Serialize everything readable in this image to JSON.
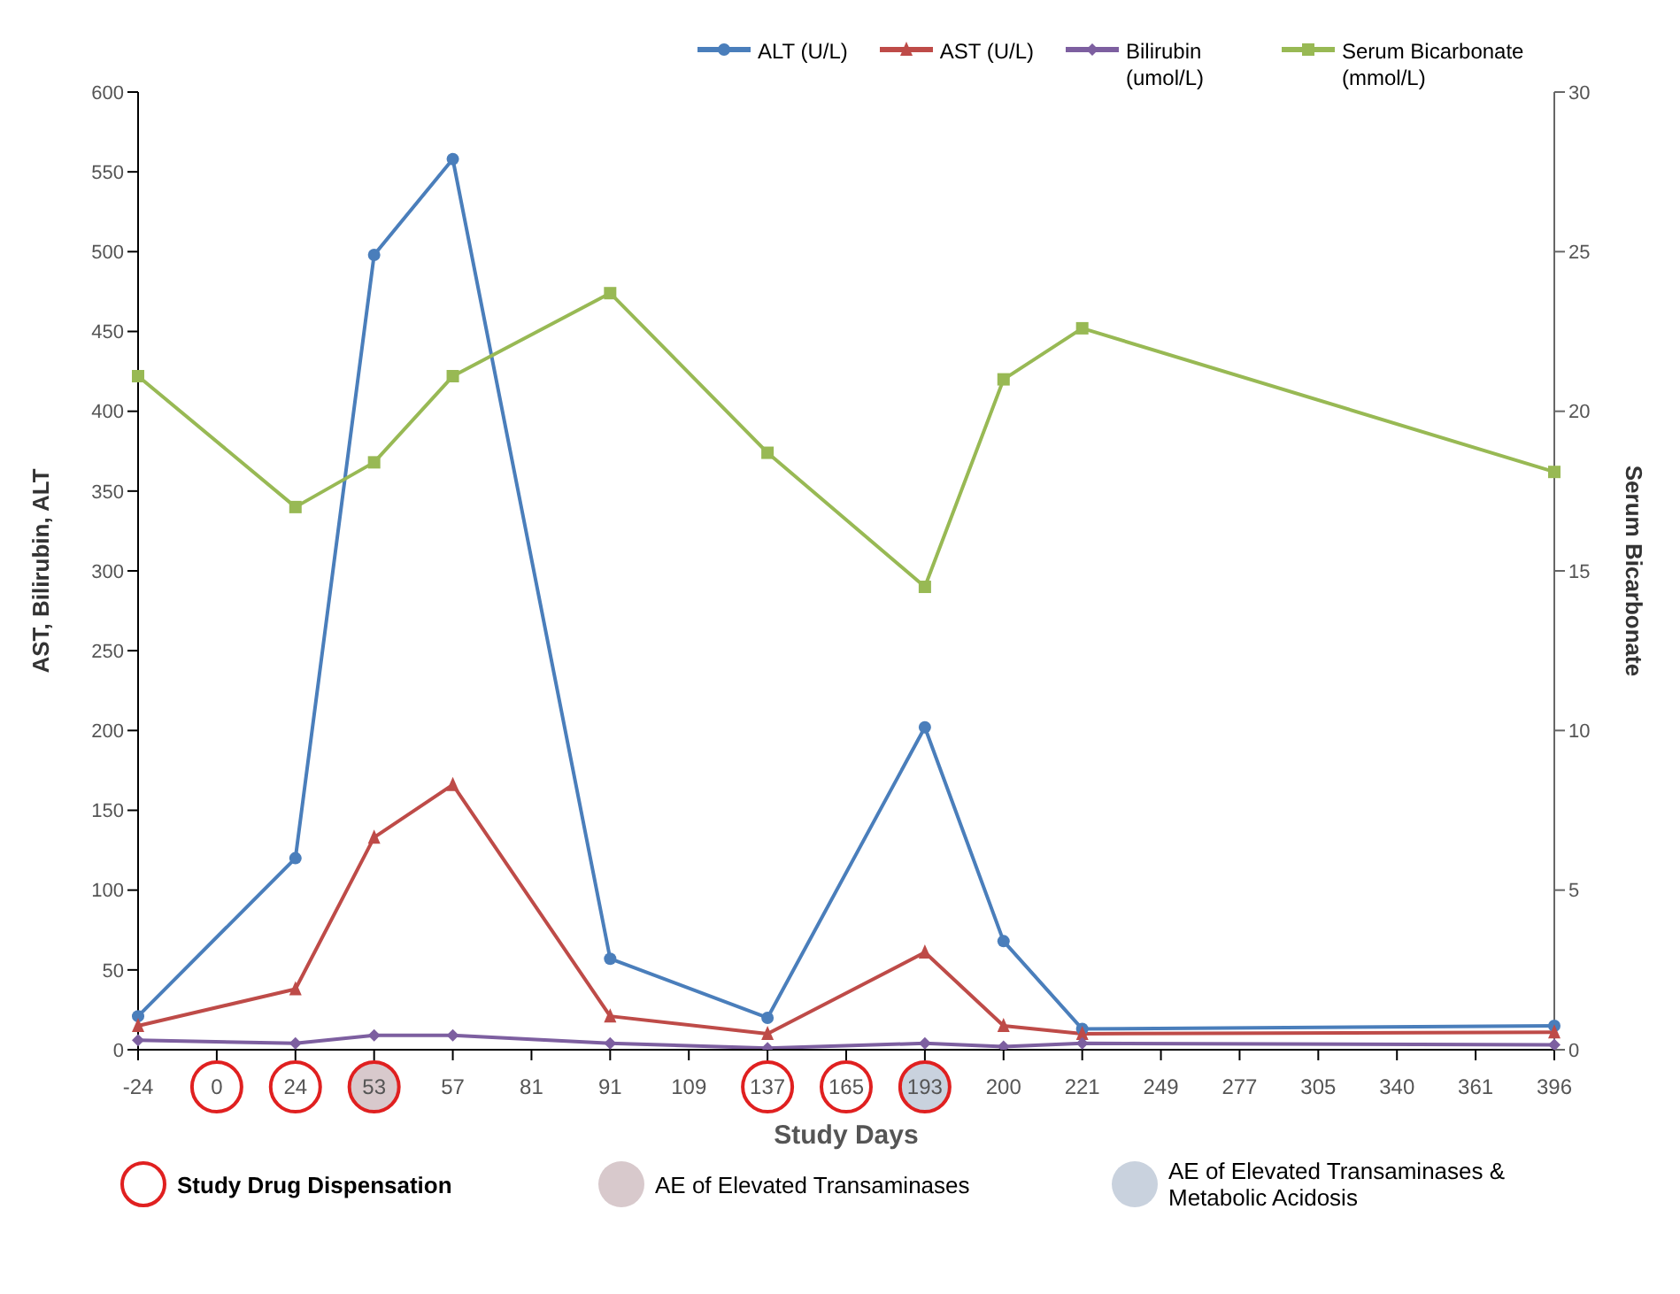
{
  "chart_data": {
    "type": "line",
    "xlabel": "Study Days",
    "ylabel": "AST, Bilirubin, ALT",
    "y2label": "Serum Bicarbonate",
    "categories": [
      "-24",
      "0",
      "24",
      "53",
      "57",
      "81",
      "91",
      "109",
      "137",
      "165",
      "193",
      "200",
      "221",
      "249",
      "277",
      "305",
      "340",
      "361",
      "396"
    ],
    "series": [
      {
        "name": "ALT (U/L)",
        "color": "#4a7ebb",
        "marker": "circle",
        "values": [
          21,
          null,
          120,
          498,
          558,
          null,
          57,
          null,
          20,
          null,
          202,
          68,
          13,
          null,
          null,
          null,
          null,
          null,
          15
        ]
      },
      {
        "name": "AST (U/L)",
        "color": "#be4b48",
        "marker": "triangle",
        "values": [
          15,
          null,
          38,
          133,
          166,
          null,
          21,
          null,
          10,
          null,
          61,
          15,
          10,
          null,
          null,
          null,
          null,
          null,
          11
        ]
      },
      {
        "name": "Bilirubin (umol/L)",
        "color": "#7d5fa0",
        "marker": "diamond",
        "values": [
          6,
          null,
          4,
          9,
          9,
          null,
          4,
          null,
          1,
          null,
          4,
          2,
          4,
          null,
          null,
          null,
          null,
          null,
          3
        ]
      },
      {
        "name": "Serum Bicarbonate (mmol/L)",
        "color": "#98b954",
        "marker": "square",
        "axis": "y2",
        "values": [
          21.1,
          null,
          17.0,
          18.4,
          21.1,
          null,
          23.7,
          null,
          18.7,
          null,
          14.5,
          21.0,
          22.6,
          null,
          null,
          null,
          null,
          null,
          18.1
        ]
      }
    ],
    "ylim": [
      0,
      600
    ],
    "yticks": [
      0,
      50,
      100,
      150,
      200,
      250,
      300,
      350,
      400,
      450,
      500,
      550,
      600
    ],
    "y2lim": [
      0,
      30
    ],
    "y2ticks": [
      0,
      5,
      10,
      15,
      20,
      25,
      30
    ],
    "grid": false,
    "legend": "top right",
    "annotations": [
      "Study Drug Dispensation",
      "AE of Elevated Transaminases",
      "AE of Elevated Transaminases & Metabolic Acidosis"
    ]
  }
}
